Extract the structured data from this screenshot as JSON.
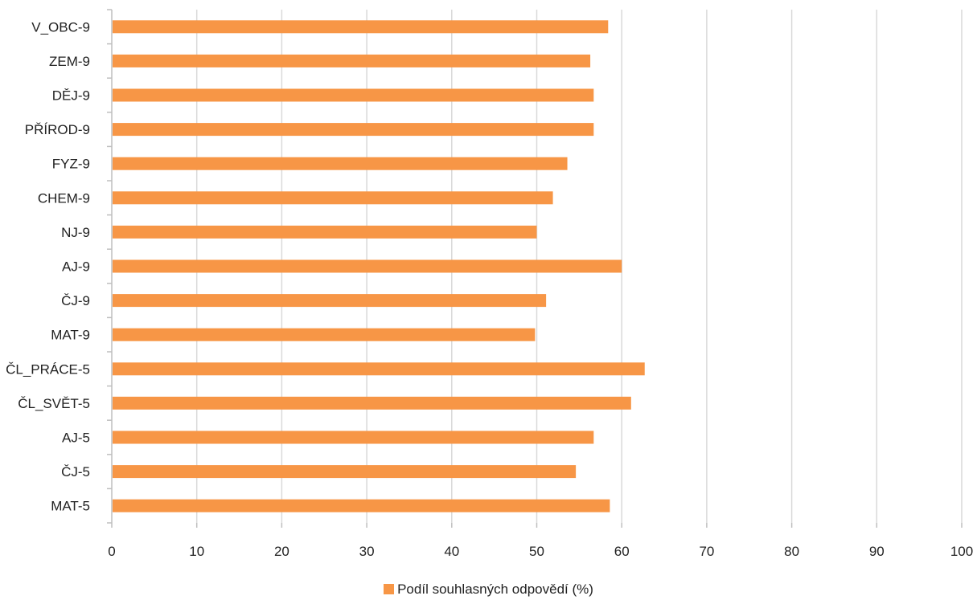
{
  "chart_data": {
    "type": "bar",
    "orientation": "horizontal",
    "categories": [
      "MAT-5",
      "ČJ-5",
      "AJ-5",
      "ČL_SVĚT-5",
      "ČL_PRÁCE-5",
      "MAT-9",
      "ČJ-9",
      "AJ-9",
      "NJ-9",
      "CHEM-9",
      "FYZ-9",
      "PŘÍROD-9",
      "DĚJ-9",
      "ZEM-9",
      "V_OBC-9"
    ],
    "series": [
      {
        "name": "Podíl souhlasných odpovědí (%)",
        "values": [
          58.6,
          54.6,
          56.7,
          61.1,
          62.7,
          49.8,
          51.1,
          60.0,
          50.0,
          51.9,
          53.6,
          56.7,
          56.7,
          56.3,
          58.4
        ],
        "color": "#F79646"
      }
    ],
    "xlim": [
      0,
      100
    ],
    "xticks": [
      0,
      10,
      20,
      30,
      40,
      50,
      60,
      70,
      80,
      90,
      100
    ],
    "grid": true,
    "legend_position": "bottom"
  },
  "colors": {
    "bar": "#F79646",
    "grid": "#D9D9D9",
    "axis": "#BFBFBF"
  }
}
